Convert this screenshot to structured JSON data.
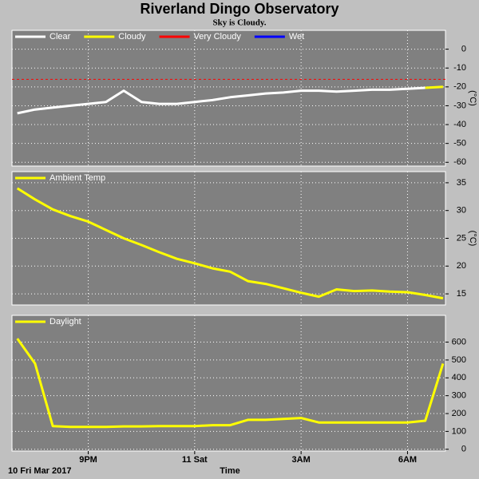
{
  "chart_data": [
    {
      "type": "line",
      "title": "Riverland Dingo Observatory",
      "subtitle": "Sky is Cloudy.",
      "y_label": "(°C)",
      "x": [
        -5,
        -4.5,
        -4,
        -3.5,
        -3,
        -2.5,
        -2,
        -1.5,
        -1,
        -0.5,
        0,
        0.5,
        1,
        1.5,
        2,
        2.5,
        3,
        3.5,
        4,
        4.5,
        5,
        5.5,
        6,
        6.5,
        7
      ],
      "series": [
        {
          "name": "Clear",
          "color": "#ffffff",
          "values": [
            -34,
            -32,
            -31,
            -30,
            -29,
            -28,
            -22,
            -28,
            -29,
            -29,
            -28,
            -27,
            -25.5,
            -24.5,
            -23.5,
            -23,
            -22,
            -22,
            -22.5,
            -22,
            -21.5,
            -21.5,
            -21,
            -20.5,
            null
          ]
        },
        {
          "name": "Cloudy",
          "color": "#ffff00",
          "values": [
            null,
            null,
            null,
            null,
            null,
            null,
            null,
            null,
            null,
            null,
            null,
            null,
            null,
            null,
            null,
            null,
            null,
            null,
            null,
            null,
            null,
            null,
            null,
            -20.5,
            -20
          ]
        },
        {
          "name": "Very Cloudy",
          "color": "#ff0000",
          "values": [
            null,
            null,
            null,
            null,
            null,
            null,
            null,
            null,
            null,
            null,
            null,
            null,
            null,
            null,
            null,
            null,
            null,
            null,
            null,
            null,
            null,
            null,
            null,
            null,
            null
          ]
        },
        {
          "name": "Wet",
          "color": "#0000ff",
          "values": [
            null,
            null,
            null,
            null,
            null,
            null,
            null,
            null,
            null,
            null,
            null,
            null,
            null,
            null,
            null,
            null,
            null,
            null,
            null,
            null,
            null,
            null,
            null,
            null,
            null
          ]
        }
      ],
      "reference_line": {
        "value": -16,
        "color": "#ff0000"
      },
      "xlim": [
        -5.15,
        7.07
      ],
      "xticks": [
        -3,
        0,
        3,
        6
      ],
      "ylim": [
        -62,
        10
      ],
      "yticks": [
        0,
        -10,
        -20,
        -30,
        -40,
        -50,
        -60
      ],
      "grid": true
    },
    {
      "type": "line",
      "y_label": "(°C)",
      "x": [
        -5,
        -4.5,
        -4,
        -3.5,
        -3,
        -2.5,
        -2,
        -1.5,
        -1,
        -0.5,
        0,
        0.5,
        1,
        1.5,
        2,
        2.5,
        3,
        3.5,
        4,
        4.5,
        5,
        5.5,
        6,
        6.5,
        7
      ],
      "series": [
        {
          "name": "Ambient Temp",
          "color": "#ffff00",
          "values": [
            34,
            32,
            30.2,
            29,
            28,
            26.5,
            25,
            23.8,
            22.5,
            21.3,
            20.5,
            19.6,
            19,
            17.3,
            16.8,
            16,
            15.2,
            14.5,
            15.8,
            15.5,
            15.6,
            15.4,
            15.3,
            14.8,
            14.2
          ]
        }
      ],
      "xlim": [
        -5.15,
        7.07
      ],
      "xticks": [
        -3,
        0,
        3,
        6
      ],
      "ylim": [
        13,
        37
      ],
      "yticks": [
        15,
        20,
        25,
        30,
        35
      ],
      "grid": true
    },
    {
      "type": "line",
      "x_label": "Time",
      "start_label": "10 Fri Mar 2017",
      "x": [
        -5,
        -4.5,
        -4,
        -3.5,
        -3,
        -2.5,
        -2,
        -1.5,
        -1,
        -0.5,
        0,
        0.5,
        1,
        1.5,
        2,
        2.5,
        3,
        3.5,
        4,
        4.5,
        5,
        5.5,
        6,
        6.5,
        7
      ],
      "series": [
        {
          "name": "Daylight",
          "color": "#ffff00",
          "values": [
            620,
            480,
            130,
            125,
            125,
            125,
            128,
            128,
            130,
            130,
            130,
            135,
            135,
            165,
            165,
            170,
            175,
            150,
            150,
            150,
            150,
            150,
            150,
            160,
            480
          ]
        }
      ],
      "xlim": [
        -5.15,
        7.07
      ],
      "xticks": [
        {
          "value": -3,
          "label": "9PM"
        },
        {
          "value": 0,
          "label": "11 Sat"
        },
        {
          "value": 3,
          "label": "3AM"
        },
        {
          "value": 6,
          "label": "6AM"
        }
      ],
      "ylim": [
        -10,
        750
      ],
      "yticks": [
        0,
        100,
        200,
        300,
        400,
        500,
        600
      ],
      "grid": true
    }
  ]
}
